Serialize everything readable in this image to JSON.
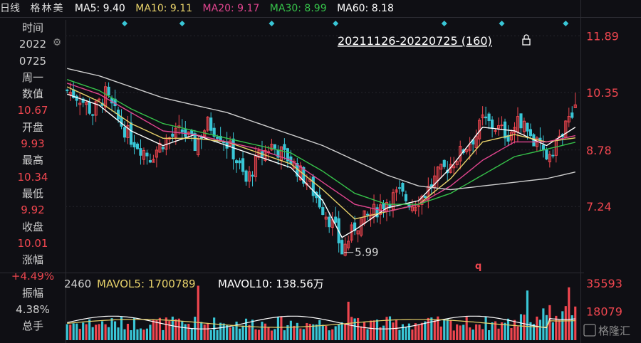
{
  "header": {
    "period": "日线",
    "name": "格林美",
    "ma5": "MA5: 9.40",
    "ma10": "MA10: 9.11",
    "ma20": "MA20: 9.17",
    "ma30": "MA30: 8.99",
    "ma60": "MA60: 8.18"
  },
  "range_label": "20211126-20220725 (160)",
  "sidebar": [
    {
      "label": "时间",
      "value": "2022",
      "value2": "0725",
      "value_color": "white"
    },
    {
      "label": "周一",
      "value": "",
      "value_color": "white"
    },
    {
      "label": "数值",
      "value": "10.67",
      "value_color": "red"
    },
    {
      "label": "开盘",
      "value": "9.93",
      "value_color": "red"
    },
    {
      "label": "最高",
      "value": "10.34",
      "value_color": "red"
    },
    {
      "label": "最低",
      "value": "9.92",
      "value_color": "red"
    },
    {
      "label": "收盘",
      "value": "10.01",
      "value_color": "red"
    },
    {
      "label": "涨幅",
      "value": "+4.49%",
      "value_color": "red"
    },
    {
      "label": "振幅",
      "value": "4.38%",
      "value_color": "white"
    },
    {
      "label": "总手",
      "value": "",
      "value_color": "white"
    }
  ],
  "price_axis": [
    "11.89",
    "10.35",
    "8.78",
    "7.24"
  ],
  "low_annotation": "5.99",
  "q_marker": "q",
  "volume_header": {
    "cut": "2460",
    "mavol5": "MAVOL5: 1700789",
    "mavol10": "MAVOL10: 138.56万"
  },
  "volume_axis": [
    "35593",
    "18079"
  ],
  "watermark": "格隆汇",
  "colors": {
    "up": "#f0464f",
    "down": "#39c6d6",
    "ma5": "#ffffff",
    "ma10": "#e8d26a",
    "ma20": "#e2458f",
    "ma30": "#36c24a",
    "ma60": "#cfcfcf",
    "header_ma5": "#ffffff",
    "header_ma10": "#e8d26a",
    "header_ma20": "#e2458f",
    "header_ma30": "#36c24a",
    "header_ma60": "#ffffff"
  },
  "chart_data": {
    "type": "candlestick",
    "price_ticks": [
      11.89,
      10.35,
      8.78,
      7.24
    ],
    "ylim": [
      5.5,
      12.4
    ],
    "low_marker": 5.99,
    "price_path": [
      [
        0,
        10.4
      ],
      [
        4,
        10.2
      ],
      [
        8,
        9.8
      ],
      [
        12,
        10.3
      ],
      [
        16,
        9.6
      ],
      [
        20,
        9.1
      ],
      [
        26,
        8.6
      ],
      [
        30,
        9.0
      ],
      [
        36,
        9.3
      ],
      [
        40,
        8.9
      ],
      [
        44,
        9.5
      ],
      [
        48,
        9.2
      ],
      [
        52,
        8.7
      ],
      [
        56,
        7.9
      ],
      [
        60,
        8.6
      ],
      [
        64,
        8.9
      ],
      [
        70,
        8.5
      ],
      [
        76,
        7.8
      ],
      [
        80,
        7.2
      ],
      [
        84,
        6.6
      ],
      [
        86,
        6.0
      ],
      [
        90,
        6.7
      ],
      [
        96,
        7.1
      ],
      [
        100,
        7.4
      ],
      [
        104,
        7.6
      ],
      [
        108,
        7.3
      ],
      [
        112,
        7.6
      ],
      [
        116,
        8.1
      ],
      [
        120,
        8.4
      ],
      [
        124,
        8.8
      ],
      [
        128,
        9.2
      ],
      [
        130,
        9.6
      ],
      [
        134,
        9.4
      ],
      [
        138,
        9.2
      ],
      [
        142,
        9.6
      ],
      [
        146,
        9.0
      ],
      [
        150,
        8.6
      ],
      [
        154,
        9.1
      ],
      [
        158,
        9.7
      ],
      [
        159,
        10.3
      ]
    ],
    "ma_paths": {
      "MA5": [
        [
          0,
          10.3
        ],
        [
          10,
          10.0
        ],
        [
          20,
          9.3
        ],
        [
          30,
          8.9
        ],
        [
          40,
          9.2
        ],
        [
          50,
          8.9
        ],
        [
          60,
          8.6
        ],
        [
          70,
          8.3
        ],
        [
          80,
          7.4
        ],
        [
          86,
          6.4
        ],
        [
          90,
          6.6
        ],
        [
          100,
          7.2
        ],
        [
          110,
          7.4
        ],
        [
          120,
          8.3
        ],
        [
          130,
          9.4
        ],
        [
          140,
          9.3
        ],
        [
          150,
          8.9
        ],
        [
          159,
          9.4
        ]
      ],
      "MA10": [
        [
          0,
          10.5
        ],
        [
          10,
          10.1
        ],
        [
          20,
          9.5
        ],
        [
          30,
          9.1
        ],
        [
          40,
          9.1
        ],
        [
          50,
          9.0
        ],
        [
          60,
          8.7
        ],
        [
          70,
          8.4
        ],
        [
          80,
          7.7
        ],
        [
          90,
          6.9
        ],
        [
          100,
          7.1
        ],
        [
          110,
          7.3
        ],
        [
          120,
          8.0
        ],
        [
          130,
          9.0
        ],
        [
          140,
          9.2
        ],
        [
          150,
          9.0
        ],
        [
          159,
          9.11
        ]
      ],
      "MA20": [
        [
          0,
          10.6
        ],
        [
          10,
          10.3
        ],
        [
          20,
          9.8
        ],
        [
          30,
          9.3
        ],
        [
          40,
          9.2
        ],
        [
          50,
          9.0
        ],
        [
          60,
          8.8
        ],
        [
          70,
          8.5
        ],
        [
          80,
          7.9
        ],
        [
          90,
          7.3
        ],
        [
          100,
          7.1
        ],
        [
          110,
          7.3
        ],
        [
          120,
          7.8
        ],
        [
          130,
          8.5
        ],
        [
          140,
          9.0
        ],
        [
          150,
          9.0
        ],
        [
          159,
          9.17
        ]
      ],
      "MA30": [
        [
          0,
          10.7
        ],
        [
          10,
          10.4
        ],
        [
          20,
          9.9
        ],
        [
          30,
          9.5
        ],
        [
          40,
          9.3
        ],
        [
          50,
          9.1
        ],
        [
          60,
          8.9
        ],
        [
          70,
          8.7
        ],
        [
          80,
          8.2
        ],
        [
          90,
          7.6
        ],
        [
          100,
          7.3
        ],
        [
          110,
          7.3
        ],
        [
          120,
          7.6
        ],
        [
          130,
          8.1
        ],
        [
          140,
          8.6
        ],
        [
          150,
          8.8
        ],
        [
          159,
          8.99
        ]
      ],
      "MA60": [
        [
          0,
          11.0
        ],
        [
          10,
          10.8
        ],
        [
          20,
          10.5
        ],
        [
          30,
          10.2
        ],
        [
          40,
          10.0
        ],
        [
          50,
          9.8
        ],
        [
          60,
          9.5
        ],
        [
          70,
          9.2
        ],
        [
          80,
          8.9
        ],
        [
          90,
          8.5
        ],
        [
          100,
          8.1
        ],
        [
          110,
          7.8
        ],
        [
          120,
          7.7
        ],
        [
          130,
          7.8
        ],
        [
          140,
          7.9
        ],
        [
          150,
          8.0
        ],
        [
          159,
          8.18
        ]
      ]
    },
    "volume_ticks": [
      35593,
      18079
    ],
    "vol_ylim": [
      0,
      40000
    ]
  }
}
